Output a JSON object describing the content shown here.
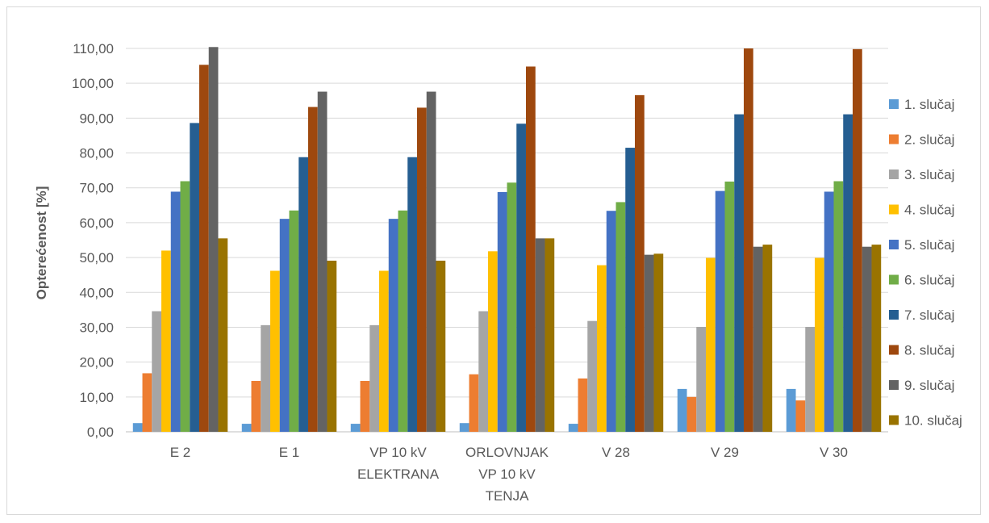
{
  "chart_data": {
    "type": "bar",
    "title": "",
    "xlabel": "",
    "ylabel": "Opterećenost [%]",
    "ylim": [
      0,
      110
    ],
    "y_ticks": [
      "0,00",
      "10,00",
      "20,00",
      "30,00",
      "40,00",
      "50,00",
      "60,00",
      "70,00",
      "80,00",
      "90,00",
      "100,00",
      "110,00"
    ],
    "grid": "horizontal",
    "legend_position": "right",
    "categories": [
      [
        "E 2"
      ],
      [
        "E 1"
      ],
      [
        "VP 10 kV",
        "ELEKTRANA"
      ],
      [
        "ORLOVNJAK",
        "VP 10 kV",
        "TENJA"
      ],
      [
        "V 28"
      ],
      [
        "V 29"
      ],
      [
        "V 30"
      ]
    ],
    "series": [
      {
        "name": "1. slučaj",
        "color": "#5b9bd5",
        "values": [
          2.5,
          2.3,
          2.3,
          2.5,
          2.3,
          12.3,
          12.3
        ]
      },
      {
        "name": "2. slučaj",
        "color": "#ed7d31",
        "values": [
          16.8,
          14.6,
          14.6,
          16.5,
          15.3,
          10.0,
          9.0
        ]
      },
      {
        "name": "3. slučaj",
        "color": "#a5a5a5",
        "values": [
          34.6,
          30.6,
          30.6,
          34.6,
          31.8,
          30.1,
          30.1
        ]
      },
      {
        "name": "4. slučaj",
        "color": "#ffc000",
        "values": [
          52.0,
          46.2,
          46.2,
          51.8,
          47.8,
          49.9,
          49.9
        ]
      },
      {
        "name": "5. slučaj",
        "color": "#4472c4",
        "values": [
          68.9,
          61.1,
          61.1,
          68.8,
          63.4,
          69.1,
          68.9
        ]
      },
      {
        "name": "6. slučaj",
        "color": "#70ad47",
        "values": [
          71.9,
          63.5,
          63.5,
          71.5,
          65.9,
          71.8,
          71.9
        ]
      },
      {
        "name": "7. slučaj",
        "color": "#255e91",
        "values": [
          88.6,
          78.8,
          78.8,
          88.4,
          81.5,
          91.1,
          91.1
        ]
      },
      {
        "name": "8. slučaj",
        "color": "#9e480e",
        "values": [
          105.3,
          93.2,
          93.0,
          104.8,
          96.6,
          110.0,
          109.8
        ]
      },
      {
        "name": "9. slučaj",
        "color": "#636363",
        "values": [
          110.4,
          97.6,
          97.6,
          55.5,
          50.8,
          53.1,
          53.1
        ]
      },
      {
        "name": "10. slučaj",
        "color": "#997300",
        "values": [
          55.5,
          49.1,
          49.1,
          55.5,
          51.1,
          53.7,
          53.7
        ]
      }
    ]
  }
}
